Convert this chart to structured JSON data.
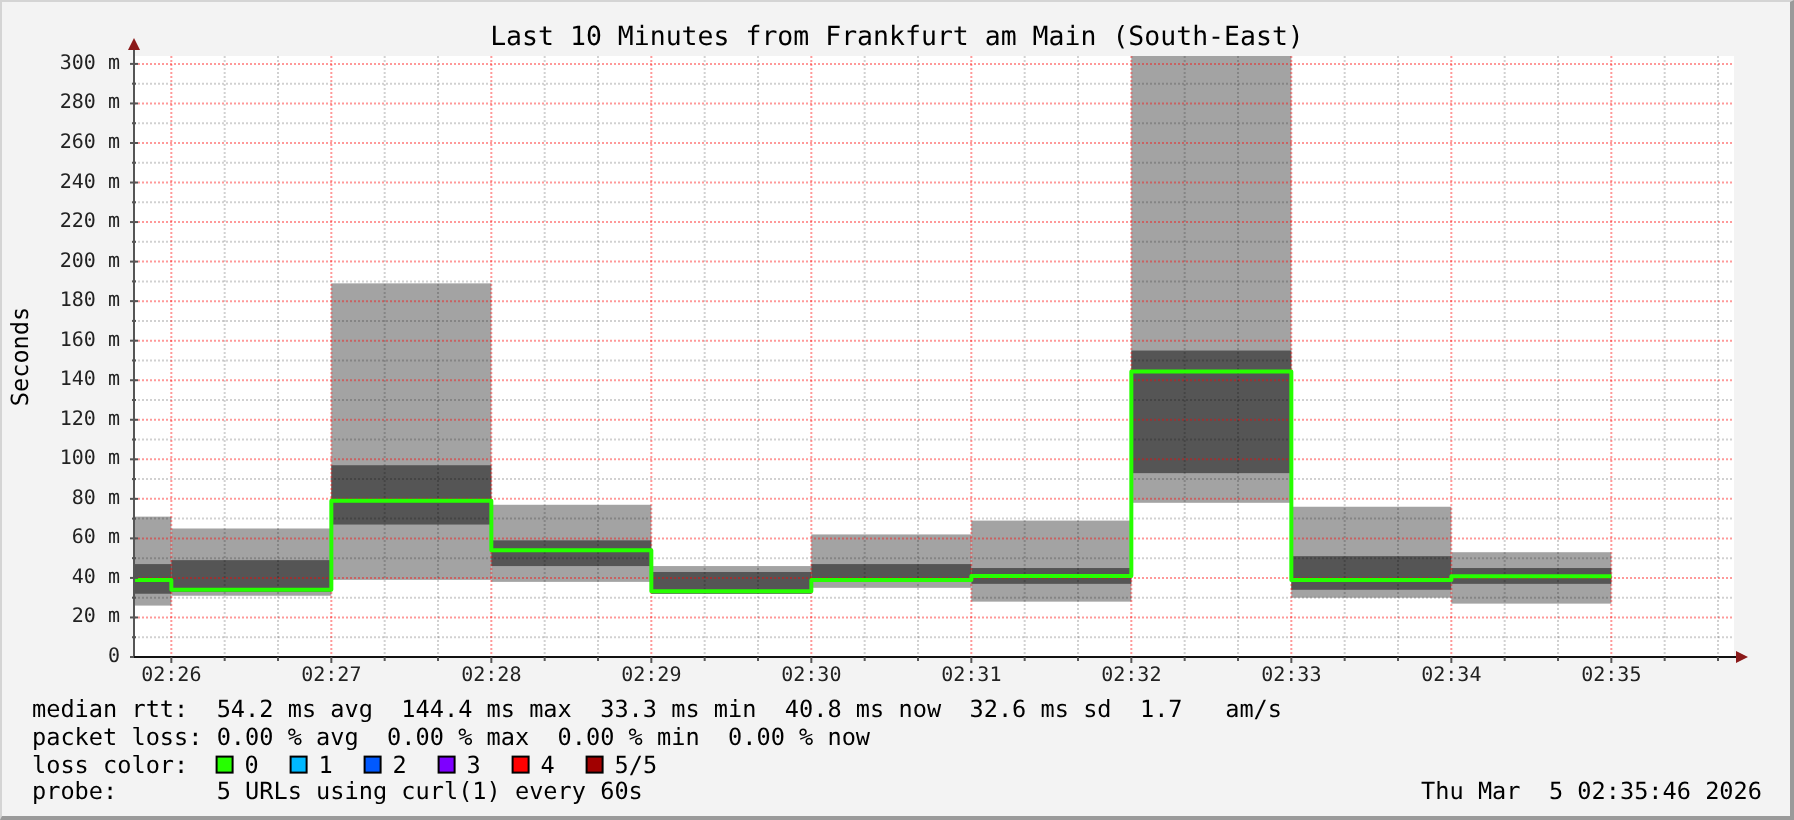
{
  "chart_data": {
    "type": "bar",
    "title": "Last 10 Minutes from Frankfurt am Main (South-East)",
    "ylabel": "Seconds",
    "legend_title": "loss color:",
    "legend": "bottom",
    "grid": true,
    "x": [
      "2026-03-05T02:25:53",
      "2026-03-05T02:26:30",
      "2026-03-05T02:27:30",
      "2026-03-05T02:28:30",
      "2026-03-05T02:29:30",
      "2026-03-05T02:30:30",
      "2026-03-05T02:31:30",
      "2026-03-05T02:32:30",
      "2026-03-05T02:33:30",
      "2026-03-05T02:34:30"
    ],
    "xlim": [
      "2026-03-05T02:25:46",
      "2026-03-05T02:35:46"
    ],
    "xticks": [
      {
        "value": "2026-03-05T02:26",
        "label": "02:26"
      },
      {
        "value": "2026-03-05T02:26:20",
        "label": null
      },
      {
        "value": "2026-03-05T02:26:40",
        "label": null
      },
      {
        "value": "2026-03-05T02:27",
        "label": "02:27"
      },
      {
        "value": "2026-03-05T02:27:20",
        "label": null
      },
      {
        "value": "2026-03-05T02:27:40",
        "label": null
      },
      {
        "value": "2026-03-05T02:28",
        "label": "02:28"
      },
      {
        "value": "2026-03-05T02:28:20",
        "label": null
      },
      {
        "value": "2026-03-05T02:28:40",
        "label": null
      },
      {
        "value": "2026-03-05T02:29",
        "label": "02:29"
      },
      {
        "value": "2026-03-05T02:29:20",
        "label": null
      },
      {
        "value": "2026-03-05T02:29:40",
        "label": null
      },
      {
        "value": "2026-03-05T02:30",
        "label": "02:30"
      },
      {
        "value": "2026-03-05T02:30:20",
        "label": null
      },
      {
        "value": "2026-03-05T02:30:40",
        "label": null
      },
      {
        "value": "2026-03-05T02:31",
        "label": "02:31"
      },
      {
        "value": "2026-03-05T02:31:20",
        "label": null
      },
      {
        "value": "2026-03-05T02:31:40",
        "label": null
      },
      {
        "value": "2026-03-05T02:32",
        "label": "02:32"
      },
      {
        "value": "2026-03-05T02:32:20",
        "label": null
      },
      {
        "value": "2026-03-05T02:32:40",
        "label": null
      },
      {
        "value": "2026-03-05T02:33",
        "label": "02:33"
      },
      {
        "value": "2026-03-05T02:33:20",
        "label": null
      },
      {
        "value": "2026-03-05T02:33:40",
        "label": null
      },
      {
        "value": "2026-03-05T02:34",
        "label": "02:34"
      },
      {
        "value": "2026-03-05T02:34:20",
        "label": null
      },
      {
        "value": "2026-03-05T02:34:40",
        "label": null
      },
      {
        "value": "2026-03-05T02:35",
        "label": "02:35"
      },
      {
        "value": "2026-03-05T02:35:20",
        "label": null
      },
      {
        "value": "2026-03-05T02:35:40",
        "label": null
      }
    ],
    "ylim": [
      0,
      304
    ],
    "yticks": [
      0,
      {
        "value": 10,
        "label": null
      },
      {
        "value": 20,
        "label": "20 m"
      },
      {
        "value": 30,
        "label": null
      },
      {
        "value": 40,
        "label": "40 m"
      },
      {
        "value": 50,
        "label": null
      },
      {
        "value": 60,
        "label": "60 m"
      },
      {
        "value": 70,
        "label": null
      },
      {
        "value": 80,
        "label": "80 m"
      },
      {
        "value": 90,
        "label": null
      },
      {
        "value": 100,
        "label": "100 m"
      },
      {
        "value": 110,
        "label": null
      },
      {
        "value": 120,
        "label": "120 m"
      },
      {
        "value": 130,
        "label": null
      },
      {
        "value": 140,
        "label": "140 m"
      },
      {
        "value": 150,
        "label": null
      },
      {
        "value": 160,
        "label": "160 m"
      },
      {
        "value": 170,
        "label": null
      },
      {
        "value": 180,
        "label": "180 m"
      },
      {
        "value": 190,
        "label": null
      },
      {
        "value": 200,
        "label": "200 m"
      },
      {
        "value": 210,
        "label": null
      },
      {
        "value": 220,
        "label": "220 m"
      },
      {
        "value": 230,
        "label": null
      },
      {
        "value": 240,
        "label": "240 m"
      },
      {
        "value": 250,
        "label": null
      },
      {
        "value": 260,
        "label": "260 m"
      },
      {
        "value": 270,
        "label": null
      },
      {
        "value": 280,
        "label": "280 m"
      },
      {
        "value": 290,
        "label": null
      },
      {
        "value": 300,
        "label": "300 m"
      }
    ],
    "series": [
      {
        "color": "#a3a3a3",
        "base": [
          26,
          31,
          39,
          38,
          32,
          35,
          28,
          78,
          30,
          27
        ],
        "values": [
          45,
          34,
          150,
          39,
          14,
          27,
          41,
          226,
          46,
          26
        ]
      },
      {
        "color": "#555555",
        "base": [
          32,
          33,
          67,
          46,
          32,
          38,
          37,
          93,
          34,
          37
        ],
        "values": [
          15,
          16,
          30,
          13,
          11,
          9,
          8,
          62,
          17,
          8
        ]
      },
      {
        "type": "step",
        "name": "0",
        "color": "#26ff00",
        "x": [
          "2026-03-05T02:25:46",
          "2026-03-05T02:26",
          "2026-03-05T02:27",
          "2026-03-05T02:28",
          "2026-03-05T02:29",
          "2026-03-05T02:30",
          "2026-03-05T02:31",
          "2026-03-05T02:32",
          "2026-03-05T02:33",
          "2026-03-05T02:34",
          "2026-03-05T02:35"
        ],
        "values": [
          39,
          34,
          79,
          54,
          33.3,
          39,
          41,
          144.4,
          39,
          40.8,
          40.8
        ]
      },
      {
        "type": "step",
        "name": "1",
        "color": "#00b8ff",
        "values": [
          null,
          null,
          null,
          null,
          null,
          null,
          null,
          null,
          null,
          null
        ]
      },
      {
        "type": "step",
        "name": "2",
        "color": "#0059ff",
        "values": [
          null,
          null,
          null,
          null,
          null,
          null,
          null,
          null,
          null,
          null
        ]
      },
      {
        "type": "step",
        "name": "3",
        "color": "#7e00ff",
        "values": [
          null,
          null,
          null,
          null,
          null,
          null,
          null,
          null,
          null,
          null
        ]
      },
      {
        "type": "step",
        "name": "4",
        "color": "#ff0000",
        "values": [
          null,
          null,
          null,
          null,
          null,
          null,
          null,
          null,
          null,
          null
        ]
      },
      {
        "type": "step",
        "name": "5/5",
        "color": "#a10000",
        "values": [
          null,
          null,
          null,
          null,
          null,
          null,
          null,
          null,
          null,
          null
        ]
      }
    ],
    "annotations": [
      "median rtt:  54.2 ms avg  144.4 ms max  33.3 ms min  40.8 ms now  32.6 ms sd  1.7   am/s",
      "packet loss: 0.00 % avg  0.00 % max  0.00 % min  0.00 % now",
      "probe:       5 URLs using curl(1) every 60s",
      "Thu Mar  5 02:35:46 2026"
    ]
  }
}
